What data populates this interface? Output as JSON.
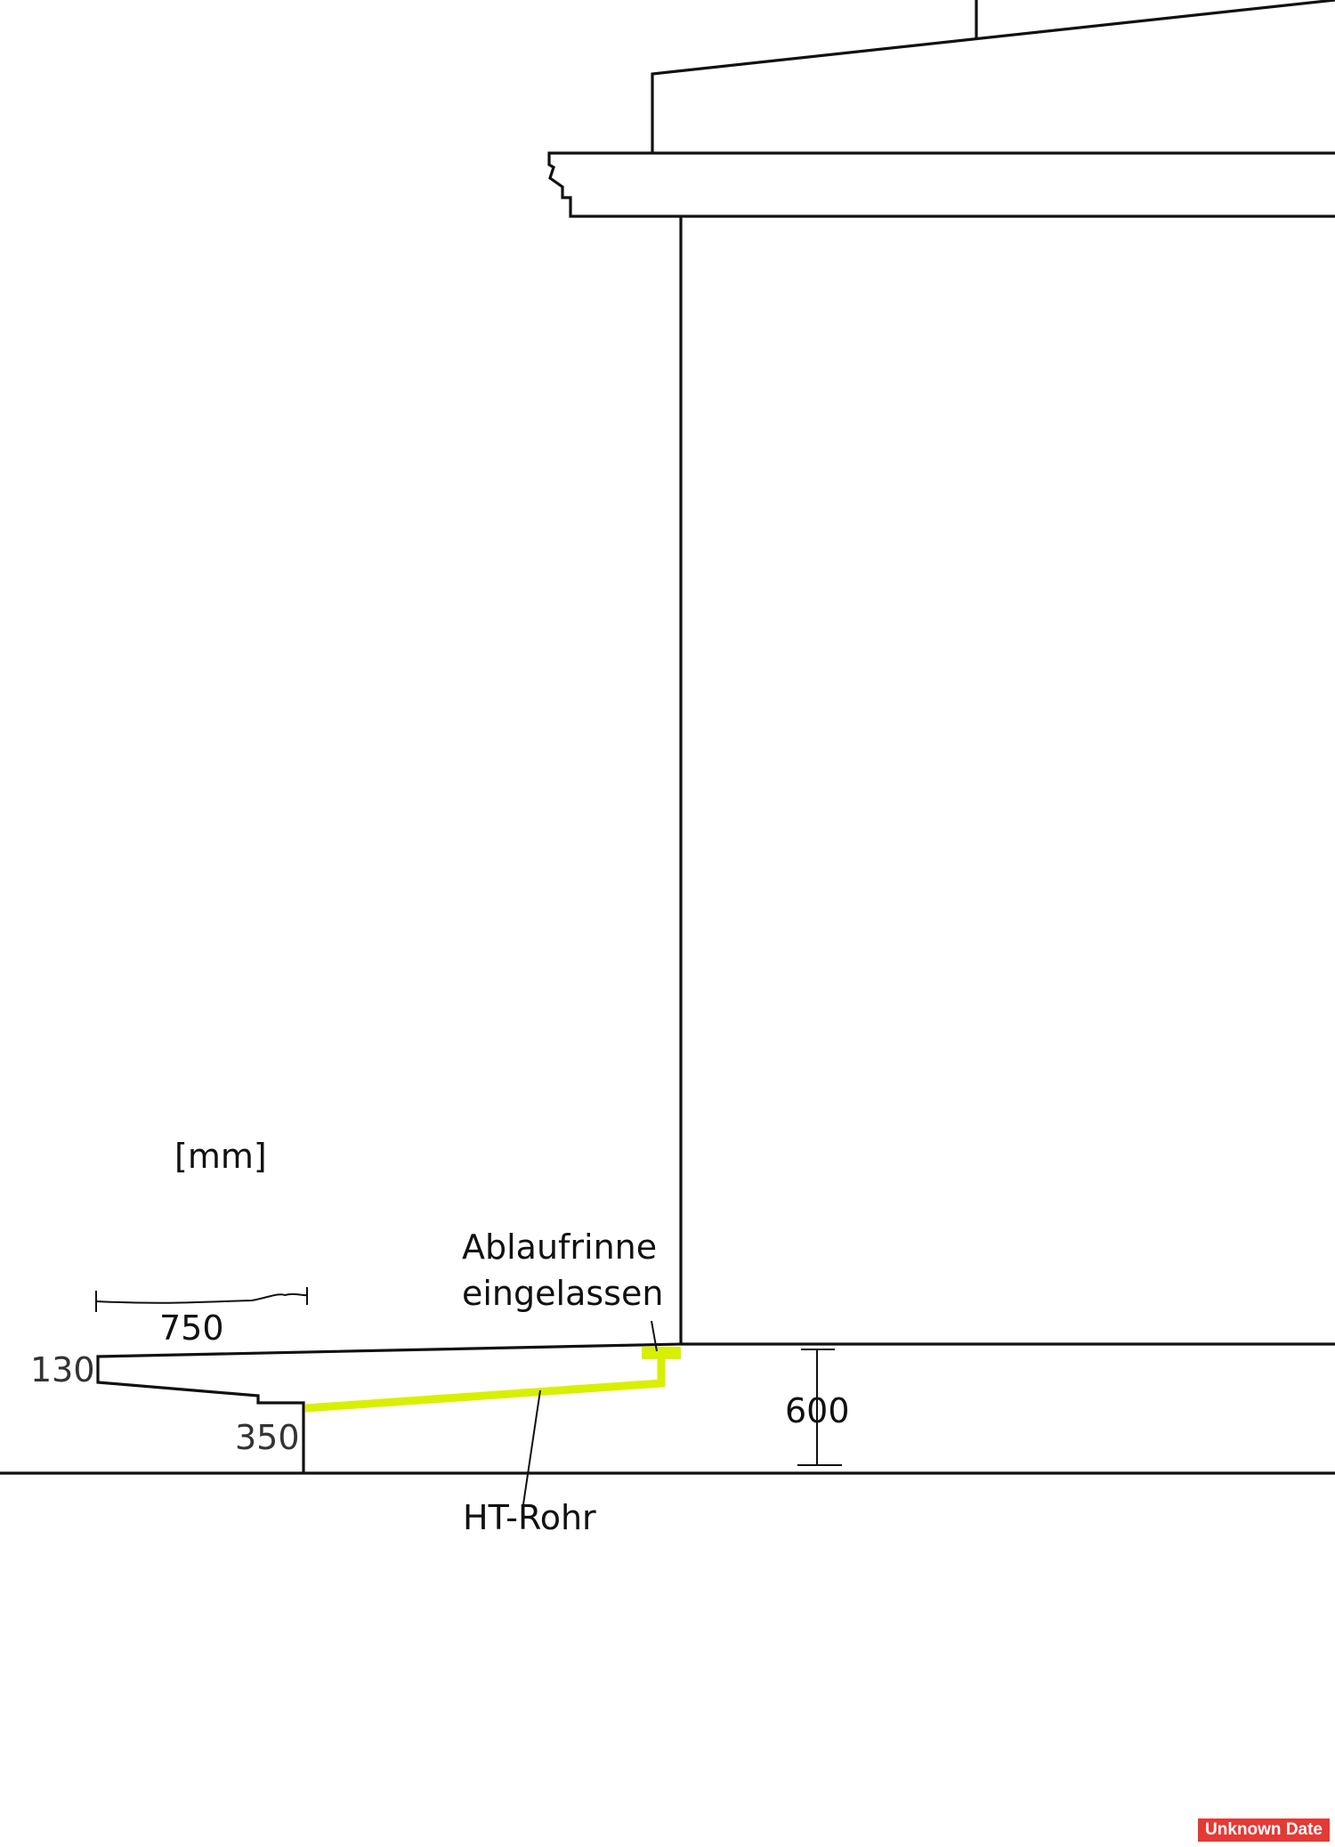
{
  "units": "[mm]",
  "annotations": {
    "gutter_line1": "Ablaufrinne",
    "gutter_line2": "eingelassen",
    "pipe": "HT-Rohr"
  },
  "dimensions": {
    "width": "750",
    "top": "130",
    "bottom": "350",
    "height": "600"
  },
  "badge": "Unknown Date",
  "colors": {
    "pipe": "#d8f000",
    "badge": "#e53935"
  }
}
